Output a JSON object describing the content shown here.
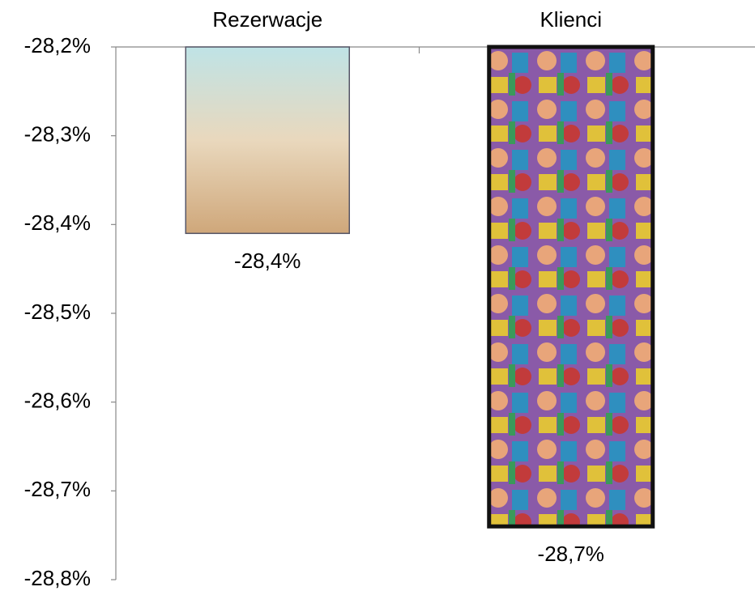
{
  "chart_data": {
    "type": "bar",
    "categories": [
      "Rezerwacje",
      "Klienci"
    ],
    "values": [
      -28.41,
      -28.74
    ],
    "value_labels": [
      "-28,4%",
      "-28,7%"
    ],
    "colors": [
      "#d9cdb4",
      "#8a5aa8"
    ],
    "ylim": [
      -28.8,
      -28.2
    ],
    "yticks": [
      {
        "value": -28.2,
        "label": "-28,2%"
      },
      {
        "value": -28.3,
        "label": "-28,3%"
      },
      {
        "value": -28.4,
        "label": "-28,4%"
      },
      {
        "value": -28.5,
        "label": "-28,5%"
      },
      {
        "value": -28.6,
        "label": "-28,6%"
      },
      {
        "value": -28.7,
        "label": "-28,7%"
      },
      {
        "value": -28.8,
        "label": "-28,8%"
      }
    ]
  }
}
